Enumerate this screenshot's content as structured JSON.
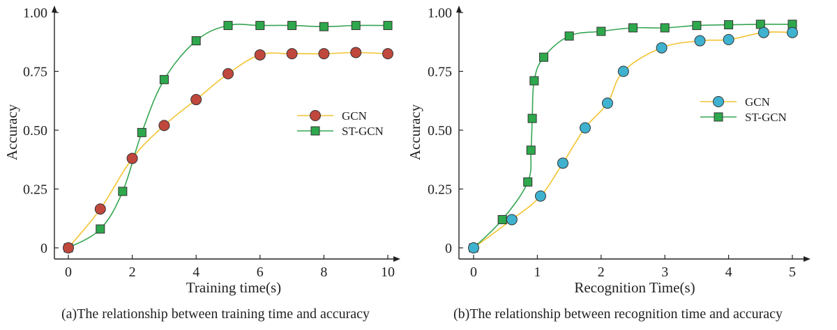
{
  "chart_data": [
    {
      "type": "line",
      "caption": "(a)The relationship between training time and accuracy",
      "xlabel": "Training time(s)",
      "ylabel": "Accuracy",
      "xlim": [
        0,
        10
      ],
      "ylim": [
        0,
        1
      ],
      "x_ticks": [
        "0",
        "2",
        "4",
        "6",
        "8",
        "10"
      ],
      "y_ticks": [
        "0",
        "0.25",
        "0.50",
        "0.75",
        "1.00"
      ],
      "legend_position": "right-middle",
      "series": [
        {
          "name": "GCN",
          "marker": "circle",
          "line_color": "#f2c330",
          "marker_color": "#c0473c",
          "x": [
            0,
            1,
            2,
            3,
            4,
            5,
            6,
            7,
            8,
            9,
            10
          ],
          "y": [
            0.0,
            0.165,
            0.38,
            0.52,
            0.63,
            0.74,
            0.82,
            0.825,
            0.825,
            0.83,
            0.825
          ]
        },
        {
          "name": "ST-GCN",
          "marker": "square",
          "line_color": "#35a552",
          "marker_color": "#2ea84c",
          "x": [
            0,
            1,
            1.7,
            2.3,
            3,
            4,
            5,
            6,
            7,
            8,
            9,
            10
          ],
          "y": [
            0.0,
            0.08,
            0.24,
            0.49,
            0.715,
            0.88,
            0.945,
            0.945,
            0.945,
            0.94,
            0.945,
            0.945
          ]
        }
      ]
    },
    {
      "type": "line",
      "caption": "(b)The relationship between recognition time and accuracy",
      "xlabel": "Recognition Time(s)",
      "ylabel": "Accuracy",
      "xlim": [
        0,
        5
      ],
      "ylim": [
        0,
        1
      ],
      "x_ticks": [
        "0",
        "1",
        "2",
        "3",
        "4",
        "5"
      ],
      "y_ticks": [
        "0",
        "0.25",
        "0.50",
        "0.75",
        "1.00"
      ],
      "legend_position": "right-middle",
      "series": [
        {
          "name": "GCN",
          "marker": "circle",
          "line_color": "#f2c330",
          "marker_color": "#3fb2cf",
          "x": [
            0,
            0.6,
            1.05,
            1.4,
            1.75,
            2.1,
            2.35,
            2.95,
            3.55,
            4.0,
            4.55,
            5.0
          ],
          "y": [
            0.0,
            0.12,
            0.22,
            0.36,
            0.51,
            0.615,
            0.75,
            0.85,
            0.88,
            0.885,
            0.915,
            0.915
          ]
        },
        {
          "name": "ST-GCN",
          "marker": "square",
          "line_color": "#35a552",
          "marker_color": "#2ea84c",
          "x": [
            0,
            0.45,
            0.85,
            0.9,
            0.92,
            0.95,
            1.1,
            1.5,
            2.0,
            2.5,
            3.0,
            3.5,
            4.0,
            4.5,
            5.0
          ],
          "y": [
            0.0,
            0.12,
            0.28,
            0.415,
            0.55,
            0.71,
            0.81,
            0.9,
            0.92,
            0.935,
            0.935,
            0.945,
            0.948,
            0.95,
            0.95
          ]
        }
      ]
    }
  ]
}
